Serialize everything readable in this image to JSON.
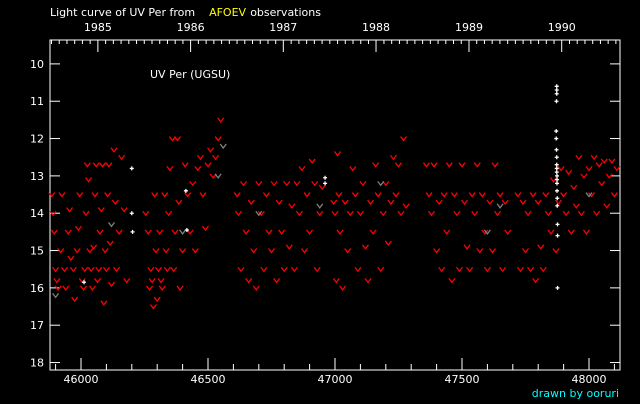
{
  "title": {
    "prefix": "Light curve of UV Per from",
    "source": "AFOEV",
    "suffix": "observations"
  },
  "credit": "drawn by ooruri",
  "colors": {
    "background": "#000000",
    "axis": "#ffffff",
    "fainter_than": "#ff0000",
    "fainter_than_other": "#808080",
    "positive": "#ffffff",
    "source": "#ffff00",
    "credit": "#00ffff"
  },
  "chart_data": {
    "type": "scatter",
    "star_label": "UV Per (UGSU)",
    "xlim": [
      45878,
      48122
    ],
    "ylim": [
      18.2,
      9.36
    ],
    "y_inverted": true,
    "x_ticks": [
      "46000",
      "46500",
      "47000",
      "47500",
      "48000"
    ],
    "y_ticks": [
      "10",
      "11",
      "12",
      "13",
      "14",
      "15",
      "16",
      "17",
      "18"
    ],
    "top_axis_years": [
      {
        "label": "1985",
        "jd": 46066.5
      },
      {
        "label": "1986",
        "jd": 46431.5
      },
      {
        "label": "1987",
        "jd": 46796.5
      },
      {
        "label": "1988",
        "jd": 47161.5
      },
      {
        "label": "1989",
        "jd": 47527.5
      },
      {
        "label": "1990",
        "jd": 47892.5
      }
    ],
    "grid": false,
    "series": [
      {
        "marker": "v",
        "color": "#ff0000",
        "points": [
          [
            45885,
            13.5
          ],
          [
            45890,
            14.0
          ],
          [
            45895,
            14.5
          ],
          [
            45900,
            15.5
          ],
          [
            45905,
            15.8
          ],
          [
            45910,
            16.0
          ],
          [
            45920,
            15.0
          ],
          [
            45925,
            13.5
          ],
          [
            45935,
            15.5
          ],
          [
            45940,
            16.0
          ],
          [
            45950,
            14.5
          ],
          [
            45955,
            13.9
          ],
          [
            45960,
            15.2
          ],
          [
            45970,
            15.5
          ],
          [
            45975,
            16.3
          ],
          [
            45985,
            15.0
          ],
          [
            45990,
            14.4
          ],
          [
            45995,
            13.5
          ],
          [
            46005,
            15.8
          ],
          [
            46010,
            16.0
          ],
          [
            46015,
            15.5
          ],
          [
            46020,
            14.0
          ],
          [
            46025,
            12.7
          ],
          [
            46030,
            13.1
          ],
          [
            46035,
            15.0
          ],
          [
            46040,
            15.5
          ],
          [
            46045,
            16.0
          ],
          [
            46050,
            14.9
          ],
          [
            46055,
            13.5
          ],
          [
            46060,
            12.7
          ],
          [
            46065,
            15.8
          ],
          [
            46070,
            15.5
          ],
          [
            46075,
            14.5
          ],
          [
            46080,
            13.9
          ],
          [
            46085,
            12.7
          ],
          [
            46090,
            16.4
          ],
          [
            46095,
            15.0
          ],
          [
            46100,
            15.5
          ],
          [
            46105,
            13.5
          ],
          [
            46110,
            12.7
          ],
          [
            46115,
            14.8
          ],
          [
            46120,
            15.9
          ],
          [
            46130,
            12.3
          ],
          [
            46135,
            13.7
          ],
          [
            46140,
            15.5
          ],
          [
            46150,
            14.5
          ],
          [
            46160,
            12.5
          ],
          [
            46170,
            13.9
          ],
          [
            46180,
            15.8
          ],
          [
            46255,
            14.0
          ],
          [
            46265,
            14.5
          ],
          [
            46270,
            16.0
          ],
          [
            46275,
            15.5
          ],
          [
            46280,
            15.8
          ],
          [
            46285,
            16.5
          ],
          [
            46290,
            13.5
          ],
          [
            46295,
            15.0
          ],
          [
            46300,
            16.3
          ],
          [
            46305,
            15.5
          ],
          [
            46310,
            14.5
          ],
          [
            46315,
            15.8
          ],
          [
            46320,
            16.0
          ],
          [
            46330,
            13.5
          ],
          [
            46335,
            15.0
          ],
          [
            46340,
            15.5
          ],
          [
            46345,
            14.0
          ],
          [
            46350,
            12.8
          ],
          [
            46360,
            12.0
          ],
          [
            46365,
            15.5
          ],
          [
            46370,
            14.5
          ],
          [
            46380,
            12.0
          ],
          [
            46385,
            13.7
          ],
          [
            46390,
            16.0
          ],
          [
            46400,
            15.0
          ],
          [
            46410,
            12.7
          ],
          [
            46420,
            13.5
          ],
          [
            46430,
            14.5
          ],
          [
            46440,
            13.2
          ],
          [
            46450,
            15.0
          ],
          [
            46460,
            12.8
          ],
          [
            46470,
            12.5
          ],
          [
            46480,
            13.5
          ],
          [
            46490,
            14.4
          ],
          [
            46500,
            12.7
          ],
          [
            46510,
            12.3
          ],
          [
            46520,
            13.0
          ],
          [
            46530,
            12.5
          ],
          [
            46540,
            12.0
          ],
          [
            46550,
            11.5
          ],
          [
            46615,
            13.5
          ],
          [
            46620,
            14.0
          ],
          [
            46630,
            15.5
          ],
          [
            46640,
            13.2
          ],
          [
            46650,
            14.5
          ],
          [
            46660,
            15.8
          ],
          [
            46670,
            13.7
          ],
          [
            46680,
            15.0
          ],
          [
            46690,
            16.0
          ],
          [
            46700,
            13.2
          ],
          [
            46710,
            14.0
          ],
          [
            46720,
            15.5
          ],
          [
            46730,
            13.5
          ],
          [
            46740,
            14.5
          ],
          [
            46750,
            15.0
          ],
          [
            46760,
            13.2
          ],
          [
            46770,
            15.8
          ],
          [
            46780,
            13.7
          ],
          [
            46790,
            14.5
          ],
          [
            46800,
            15.5
          ],
          [
            46810,
            13.2
          ],
          [
            46820,
            14.9
          ],
          [
            46830,
            13.8
          ],
          [
            46840,
            15.5
          ],
          [
            46850,
            13.2
          ],
          [
            46860,
            14.0
          ],
          [
            46870,
            12.8
          ],
          [
            46880,
            15.0
          ],
          [
            46890,
            13.5
          ],
          [
            46900,
            14.5
          ],
          [
            46910,
            12.6
          ],
          [
            46920,
            13.2
          ],
          [
            46930,
            15.5
          ],
          [
            46940,
            14.0
          ],
          [
            46950,
            13.3
          ],
          [
            46995,
            13.7
          ],
          [
            47000,
            14.0
          ],
          [
            47005,
            15.8
          ],
          [
            47010,
            12.4
          ],
          [
            47015,
            13.5
          ],
          [
            47020,
            14.5
          ],
          [
            47030,
            16.0
          ],
          [
            47040,
            13.7
          ],
          [
            47050,
            15.0
          ],
          [
            47060,
            14.0
          ],
          [
            47070,
            12.8
          ],
          [
            47080,
            13.5
          ],
          [
            47090,
            15.5
          ],
          [
            47100,
            14.0
          ],
          [
            47110,
            13.2
          ],
          [
            47120,
            14.9
          ],
          [
            47130,
            15.8
          ],
          [
            47140,
            13.7
          ],
          [
            47150,
            14.5
          ],
          [
            47160,
            12.7
          ],
          [
            47170,
            13.5
          ],
          [
            47180,
            15.5
          ],
          [
            47190,
            14.0
          ],
          [
            47200,
            13.2
          ],
          [
            47210,
            14.8
          ],
          [
            47220,
            13.7
          ],
          [
            47230,
            12.5
          ],
          [
            47240,
            13.5
          ],
          [
            47250,
            12.7
          ],
          [
            47260,
            14.0
          ],
          [
            47270,
            12.0
          ],
          [
            47280,
            13.8
          ],
          [
            47360,
            12.7
          ],
          [
            47370,
            13.5
          ],
          [
            47380,
            14.0
          ],
          [
            47390,
            12.7
          ],
          [
            47400,
            15.0
          ],
          [
            47410,
            13.7
          ],
          [
            47420,
            15.5
          ],
          [
            47430,
            13.5
          ],
          [
            47440,
            14.5
          ],
          [
            47450,
            12.7
          ],
          [
            47460,
            15.8
          ],
          [
            47470,
            13.5
          ],
          [
            47480,
            14.0
          ],
          [
            47490,
            15.5
          ],
          [
            47500,
            12.7
          ],
          [
            47510,
            13.7
          ],
          [
            47520,
            14.9
          ],
          [
            47530,
            15.5
          ],
          [
            47540,
            13.5
          ],
          [
            47550,
            14.0
          ],
          [
            47560,
            12.7
          ],
          [
            47570,
            15.0
          ],
          [
            47580,
            13.5
          ],
          [
            47590,
            14.5
          ],
          [
            47600,
            15.5
          ],
          [
            47610,
            13.7
          ],
          [
            47620,
            15.0
          ],
          [
            47630,
            12.7
          ],
          [
            47640,
            14.0
          ],
          [
            47650,
            13.5
          ],
          [
            47660,
            15.5
          ],
          [
            47670,
            13.7
          ],
          [
            47680,
            14.5
          ],
          [
            47720,
            13.5
          ],
          [
            47730,
            15.5
          ],
          [
            47740,
            13.7
          ],
          [
            47750,
            15.0
          ],
          [
            47760,
            14.0
          ],
          [
            47770,
            15.5
          ],
          [
            47780,
            13.5
          ],
          [
            47790,
            15.8
          ],
          [
            47800,
            13.7
          ],
          [
            47810,
            14.9
          ],
          [
            47820,
            15.5
          ],
          [
            47830,
            13.5
          ],
          [
            47840,
            14.0
          ],
          [
            47850,
            14.5
          ],
          [
            47860,
            13.1
          ],
          [
            47870,
            15.0
          ],
          [
            47880,
            13.7
          ],
          [
            47890,
            12.8
          ],
          [
            47900,
            13.5
          ],
          [
            47910,
            14.0
          ],
          [
            47920,
            12.9
          ],
          [
            47930,
            14.5
          ],
          [
            47940,
            13.3
          ],
          [
            47950,
            13.8
          ],
          [
            47960,
            12.5
          ],
          [
            47970,
            14.0
          ],
          [
            47980,
            13.0
          ],
          [
            47990,
            14.5
          ],
          [
            48000,
            12.8
          ],
          [
            48010,
            13.5
          ],
          [
            48020,
            12.5
          ],
          [
            48030,
            14.0
          ],
          [
            48040,
            12.7
          ],
          [
            48050,
            13.2
          ],
          [
            48060,
            12.6
          ],
          [
            48070,
            13.8
          ],
          [
            48080,
            13.0
          ],
          [
            48090,
            12.6
          ],
          [
            48100,
            13.5
          ],
          [
            48110,
            12.8
          ]
        ]
      },
      {
        "marker": "v",
        "color": "#808080",
        "points": [
          [
            45900,
            16.2
          ],
          [
            46120,
            14.3
          ],
          [
            46400,
            14.5
          ],
          [
            46540,
            13.0
          ],
          [
            46560,
            12.2
          ],
          [
            46700,
            14.0
          ],
          [
            46940,
            13.8
          ],
          [
            47180,
            13.2
          ],
          [
            47600,
            14.5
          ],
          [
            47650,
            13.8
          ],
          [
            48000,
            13.5
          ]
        ]
      },
      {
        "marker": "+",
        "color": "#ffffff",
        "points": [
          [
            46012,
            15.85
          ],
          [
            46200,
            12.8
          ],
          [
            46200,
            14.0
          ],
          [
            46203,
            14.5
          ],
          [
            46413,
            13.4
          ],
          [
            46417,
            14.45
          ],
          [
            46961,
            13.05
          ],
          [
            46961,
            13.2
          ],
          [
            47873,
            10.6
          ],
          [
            47873,
            10.7
          ],
          [
            47873,
            10.8
          ],
          [
            47872,
            11.0
          ],
          [
            47871,
            11.8
          ],
          [
            47871,
            12.0
          ],
          [
            47872,
            12.3
          ],
          [
            47873,
            12.5
          ],
          [
            47873,
            12.7
          ],
          [
            47873,
            12.8
          ],
          [
            47873,
            12.9
          ],
          [
            47874,
            13.0
          ],
          [
            47874,
            13.1
          ],
          [
            47874,
            13.2
          ],
          [
            47874,
            13.4
          ],
          [
            47875,
            13.6
          ],
          [
            47875,
            13.8
          ],
          [
            47876,
            14.3
          ],
          [
            47876,
            14.6
          ],
          [
            47876,
            16.0
          ]
        ]
      }
    ]
  }
}
